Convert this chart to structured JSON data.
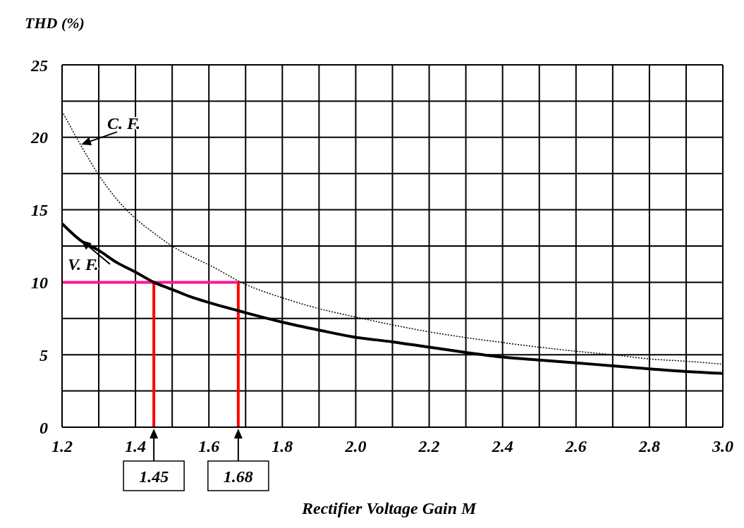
{
  "chart_data": {
    "type": "line",
    "ylabel": "THD (%)",
    "xlabel": "Rectifier Voltage Gain M",
    "x": [
      1.2,
      1.25,
      1.3,
      1.35,
      1.4,
      1.45,
      1.5,
      1.55,
      1.6,
      1.7,
      1.8,
      1.9,
      2.0,
      2.1,
      2.2,
      2.3,
      2.4,
      2.5,
      2.6,
      2.7,
      2.8,
      2.9,
      3.0
    ],
    "series": [
      {
        "name": "C. F.",
        "color": "#000000",
        "line_style": "dotted",
        "values": [
          21.8,
          19.5,
          17.4,
          15.7,
          14.4,
          13.4,
          12.5,
          11.8,
          11.2,
          9.85,
          8.93,
          8.18,
          7.6,
          7.06,
          6.58,
          6.18,
          5.84,
          5.52,
          5.24,
          5.0,
          4.71,
          4.55,
          4.35
        ]
      },
      {
        "name": "V. F.",
        "color": "#000000",
        "line_style": "solid",
        "values": [
          14.05,
          12.9,
          12.2,
          11.35,
          10.7,
          10.0,
          9.5,
          9.0,
          8.6,
          7.9,
          7.25,
          6.7,
          6.2,
          5.89,
          5.52,
          5.16,
          4.84,
          4.63,
          4.44,
          4.23,
          4.03,
          3.84,
          3.71
        ]
      }
    ],
    "xlim": [
      1.2,
      3.0
    ],
    "ylim": [
      0,
      25
    ],
    "xticks": [
      {
        "value": 1.2,
        "label": "1.2"
      },
      {
        "value": 1.3,
        "label": null
      },
      {
        "value": 1.4,
        "label": "1.4"
      },
      {
        "value": 1.5,
        "label": null
      },
      {
        "value": 1.6,
        "label": "1.6"
      },
      {
        "value": 1.7,
        "label": null
      },
      {
        "value": 1.8,
        "label": "1.8"
      },
      {
        "value": 1.9,
        "label": null
      },
      {
        "value": 2.0,
        "label": "2.0"
      },
      {
        "value": 2.1,
        "label": null
      },
      {
        "value": 2.2,
        "label": "2.2"
      },
      {
        "value": 2.3,
        "label": null
      },
      {
        "value": 2.4,
        "label": "2.4"
      },
      {
        "value": 2.5,
        "label": null
      },
      {
        "value": 2.6,
        "label": "2.6"
      },
      {
        "value": 2.7,
        "label": null
      },
      {
        "value": 2.8,
        "label": "2.8"
      },
      {
        "value": 2.9,
        "label": null
      },
      {
        "value": 3.0,
        "label": "3.0"
      }
    ],
    "yticks": [
      0,
      {
        "value": 2.5,
        "label": null
      },
      5,
      {
        "value": 7.5,
        "label": null
      },
      10,
      {
        "value": 12.5,
        "label": null
      },
      15,
      {
        "value": 17.5,
        "label": null
      },
      20,
      {
        "value": 22.5,
        "label": null
      },
      25
    ],
    "grid": true,
    "legend": false,
    "marker": "none",
    "ref_lines": [
      {
        "axis": "y",
        "value": 10,
        "label": null,
        "color": "#ff1493"
      },
      {
        "axis": "x",
        "value": 1.45,
        "label": "1.45",
        "color": "#ff0000"
      },
      {
        "axis": "x",
        "value": 1.68,
        "label": "1.68",
        "color": "#ff0000"
      }
    ]
  }
}
